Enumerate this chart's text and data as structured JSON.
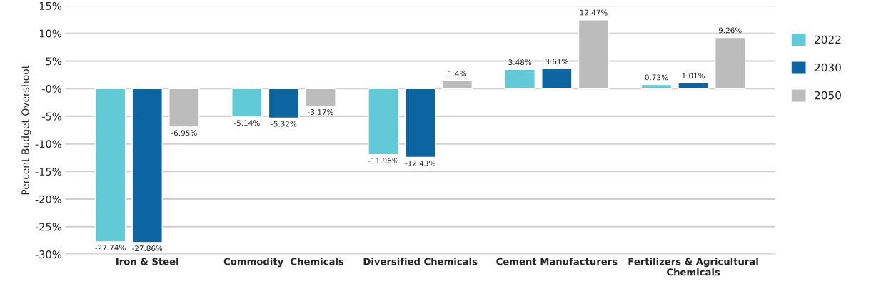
{
  "chart_data": {
    "type": "bar",
    "ylabel": "Percent Budget Overshoot",
    "categories": [
      "Iron & Steel",
      "Commodity  Chemicals",
      "Diversified Chemicals",
      "Cement Manufacturers",
      "Fertilizers & Agricultural\nChemicals"
    ],
    "series": [
      {
        "name": "2022",
        "color": "#62c9d6",
        "values": [
          -27.74,
          -5.14,
          -11.96,
          3.48,
          0.73
        ],
        "value_labels": [
          "-27.74%",
          "-5.14%",
          "-11.96%",
          "3.48%",
          "0.73%"
        ]
      },
      {
        "name": "2030",
        "color": "#0c64a0",
        "values": [
          -27.86,
          -5.32,
          -12.43,
          3.61,
          1.01
        ],
        "value_labels": [
          "-27.86%",
          "-5.32%",
          "-12.43%",
          "3.61%",
          "1.01%"
        ]
      },
      {
        "name": "2050",
        "color": "#bcbcbc",
        "values": [
          -6.95,
          -3.17,
          1.4,
          12.47,
          9.26
        ],
        "value_labels": [
          "-6.95%",
          "-3.17%",
          "1.4%",
          "12.47%",
          "9.26%"
        ]
      }
    ],
    "ylim": [
      -30,
      15
    ],
    "yticks": [
      {
        "value": -30,
        "label": "-30%"
      },
      {
        "value": -25,
        "label": "-25%"
      },
      {
        "value": -20,
        "label": "-20%"
      },
      {
        "value": -15,
        "label": "-15%"
      },
      {
        "value": -10,
        "label": "-10%"
      },
      {
        "value": -5,
        "label": "-5%"
      },
      {
        "value": 0,
        "label": "-0%"
      },
      {
        "value": 5,
        "label": "5%"
      },
      {
        "value": 10,
        "label": "10%"
      },
      {
        "value": 15,
        "label": "15%"
      }
    ],
    "grid": "y",
    "legend": "right"
  }
}
